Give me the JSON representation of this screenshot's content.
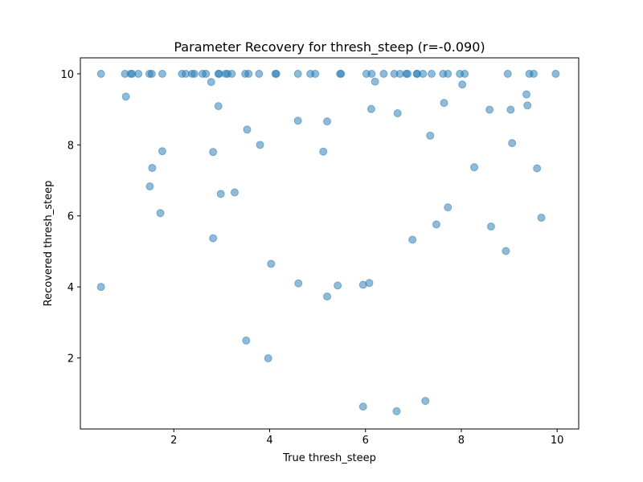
{
  "chart_data": {
    "type": "scatter",
    "title": "Parameter Recovery for thresh_steep (r=-0.090)",
    "xlabel": "True thresh_steep",
    "ylabel": "Recovered thresh_steep",
    "xlim": [
      0.05,
      10.45
    ],
    "ylim": [
      0.0,
      10.45
    ],
    "xticks": [
      2,
      4,
      6,
      8,
      10
    ],
    "yticks": [
      2,
      4,
      6,
      8,
      10
    ],
    "grid": false,
    "point_color": "#1f77b4",
    "point_alpha": 0.5,
    "points": [
      [
        0.48,
        10.0
      ],
      [
        0.98,
        10.0
      ],
      [
        1.1,
        10.0
      ],
      [
        1.13,
        10.0
      ],
      [
        1.26,
        10.0
      ],
      [
        1.49,
        10.0
      ],
      [
        1.54,
        10.0
      ],
      [
        1.76,
        10.0
      ],
      [
        2.17,
        10.0
      ],
      [
        2.25,
        10.0
      ],
      [
        2.38,
        10.0
      ],
      [
        2.43,
        10.0
      ],
      [
        2.6,
        10.0
      ],
      [
        2.67,
        10.0
      ],
      [
        2.93,
        10.0
      ],
      [
        2.95,
        10.0
      ],
      [
        3.08,
        10.0
      ],
      [
        3.12,
        10.0
      ],
      [
        3.21,
        10.0
      ],
      [
        3.49,
        10.0
      ],
      [
        3.56,
        10.0
      ],
      [
        3.78,
        10.0
      ],
      [
        4.12,
        10.0
      ],
      [
        4.14,
        10.0
      ],
      [
        4.59,
        10.0
      ],
      [
        4.85,
        10.0
      ],
      [
        4.95,
        10.0
      ],
      [
        5.47,
        10.0
      ],
      [
        5.49,
        10.0
      ],
      [
        6.02,
        10.0
      ],
      [
        6.13,
        10.0
      ],
      [
        6.38,
        10.0
      ],
      [
        6.6,
        10.0
      ],
      [
        6.72,
        10.0
      ],
      [
        6.85,
        10.0
      ],
      [
        6.88,
        10.0
      ],
      [
        7.07,
        10.0
      ],
      [
        7.08,
        10.0
      ],
      [
        7.2,
        10.0
      ],
      [
        7.38,
        10.0
      ],
      [
        7.62,
        10.0
      ],
      [
        7.72,
        10.0
      ],
      [
        7.97,
        10.0
      ],
      [
        8.07,
        10.0
      ],
      [
        8.97,
        10.0
      ],
      [
        9.42,
        10.0
      ],
      [
        9.51,
        10.0
      ],
      [
        9.97,
        10.0
      ],
      [
        0.48,
        4.0
      ],
      [
        1.0,
        9.36
      ],
      [
        1.5,
        6.83
      ],
      [
        1.55,
        7.35
      ],
      [
        1.72,
        6.08
      ],
      [
        1.76,
        7.82
      ],
      [
        2.78,
        9.77
      ],
      [
        2.82,
        5.37
      ],
      [
        2.82,
        7.8
      ],
      [
        2.93,
        9.09
      ],
      [
        2.98,
        6.62
      ],
      [
        3.27,
        6.66
      ],
      [
        3.53,
        8.43
      ],
      [
        3.51,
        2.49
      ],
      [
        3.8,
        8.0
      ],
      [
        3.97,
        1.99
      ],
      [
        4.03,
        4.65
      ],
      [
        4.59,
        8.68
      ],
      [
        4.6,
        4.1
      ],
      [
        5.12,
        7.81
      ],
      [
        5.2,
        8.66
      ],
      [
        5.2,
        3.73
      ],
      [
        5.42,
        4.04
      ],
      [
        5.95,
        4.06
      ],
      [
        5.95,
        0.63
      ],
      [
        6.08,
        4.11
      ],
      [
        6.12,
        9.01
      ],
      [
        6.2,
        9.78
      ],
      [
        6.65,
        0.5
      ],
      [
        6.67,
        8.89
      ],
      [
        6.98,
        5.33
      ],
      [
        7.25,
        0.79
      ],
      [
        7.35,
        8.26
      ],
      [
        7.48,
        5.76
      ],
      [
        7.64,
        9.18
      ],
      [
        7.72,
        6.24
      ],
      [
        8.02,
        9.7
      ],
      [
        8.27,
        7.37
      ],
      [
        8.59,
        8.99
      ],
      [
        8.62,
        5.7
      ],
      [
        8.93,
        5.01
      ],
      [
        9.03,
        8.99
      ],
      [
        9.06,
        8.05
      ],
      [
        9.36,
        9.42
      ],
      [
        9.38,
        9.11
      ],
      [
        9.58,
        7.34
      ],
      [
        9.67,
        5.95
      ]
    ]
  }
}
